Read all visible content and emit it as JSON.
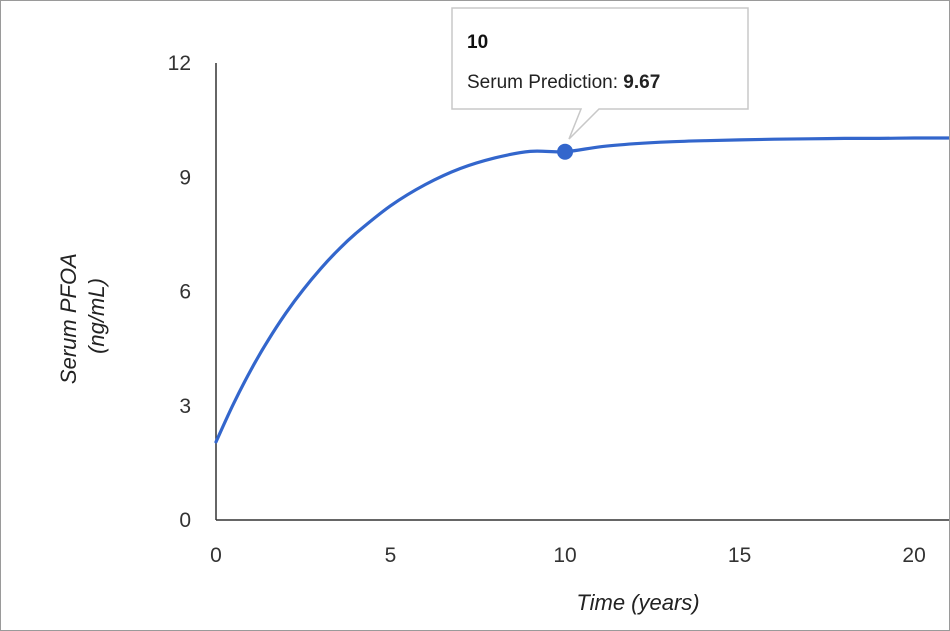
{
  "chart_data": {
    "type": "line",
    "title": "",
    "xlabel": "Time (years)",
    "ylabel_lines": [
      "Serum PFOA",
      "(ng/mL)"
    ],
    "xlim": [
      0,
      21
    ],
    "ylim": [
      0,
      12
    ],
    "x_ticks": [
      "0",
      "5",
      "10",
      "15",
      "20"
    ],
    "y_ticks": [
      "0",
      "3",
      "6",
      "9",
      "12"
    ],
    "grid": false,
    "series": [
      {
        "color": "#3366cc",
        "x": [
          0,
          0.5,
          1,
          1.5,
          2,
          2.5,
          3,
          3.5,
          4,
          5,
          6,
          7,
          8,
          9,
          10,
          11,
          12,
          13,
          14,
          15,
          16,
          17,
          18,
          19,
          20,
          21
        ],
        "y": [
          2.05,
          3.05,
          3.94,
          4.73,
          5.43,
          6.05,
          6.6,
          7.09,
          7.52,
          8.25,
          8.81,
          9.23,
          9.51,
          9.68,
          9.67,
          9.8,
          9.88,
          9.93,
          9.96,
          9.98,
          10.0,
          10.01,
          10.02,
          10.02,
          10.03,
          10.03
        ]
      }
    ],
    "highlight": {
      "x": 10,
      "y": 9.67
    },
    "tooltip": {
      "title": "10",
      "label": "Serum Prediction:",
      "value": "9.67"
    }
  }
}
